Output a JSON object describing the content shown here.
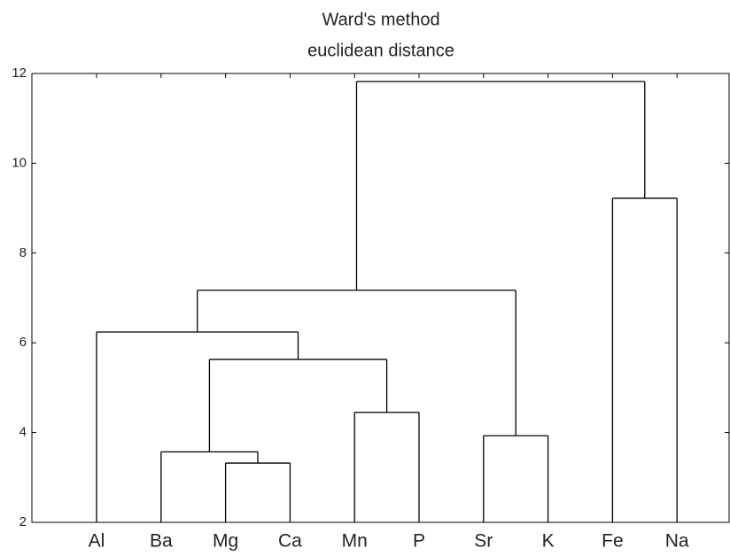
{
  "chart_data": {
    "type": "dendrogram",
    "title": "Ward's method",
    "subtitle": "euclidean distance",
    "ylim": [
      2,
      12
    ],
    "yticks": [
      2,
      4,
      6,
      8,
      10,
      12
    ],
    "color": "#000000",
    "tree": {
      "height": 11.82,
      "children": [
        {
          "height": 7.17,
          "children": [
            {
              "height": 6.24,
              "children": [
                "Al",
                {
                  "height": 5.63,
                  "children": [
                    {
                      "height": 3.57,
                      "children": [
                        "Ba",
                        {
                          "height": 3.32,
                          "children": [
                            "Mg",
                            "Ca"
                          ]
                        }
                      ]
                    },
                    {
                      "height": 4.45,
                      "children": [
                        "Mn",
                        "P"
                      ]
                    }
                  ]
                }
              ]
            },
            {
              "height": 3.93,
              "children": [
                "Sr",
                "K"
              ]
            }
          ]
        },
        {
          "height": 9.22,
          "children": [
            "Fe",
            "Na"
          ]
        }
      ]
    }
  }
}
